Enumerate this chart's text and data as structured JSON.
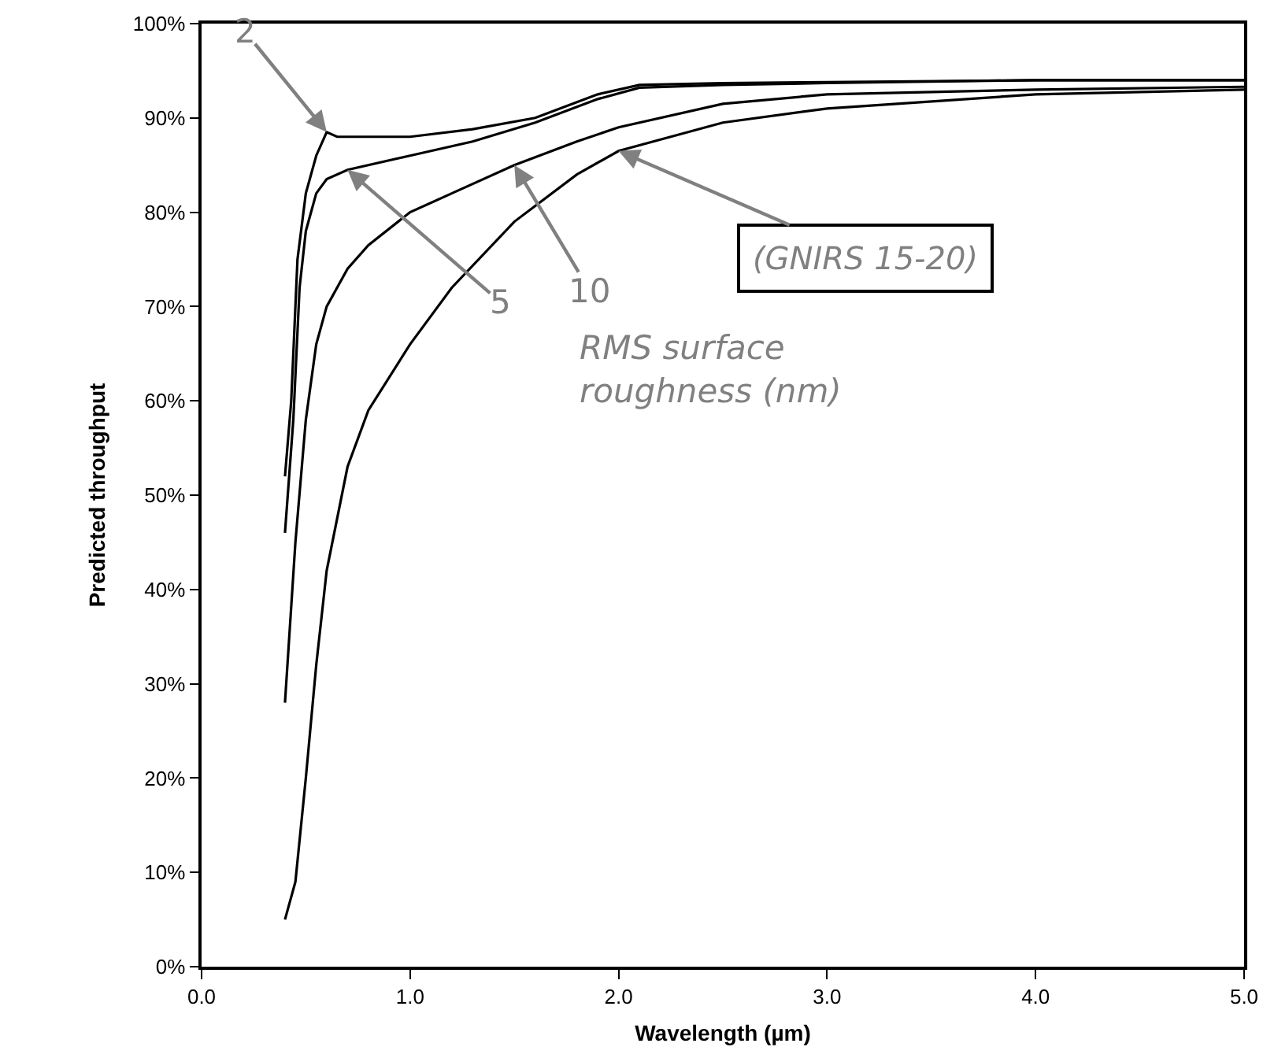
{
  "chart_data": {
    "type": "line",
    "xlabel": "Wavelength (µm)",
    "ylabel": "Predicted throughput",
    "xlim": [
      0,
      5
    ],
    "xticks": [
      {
        "value": 0,
        "label": "0.0"
      },
      {
        "value": 1,
        "label": "1.0"
      },
      {
        "value": 2,
        "label": "2.0"
      },
      {
        "value": 3,
        "label": "3.0"
      },
      {
        "value": 4,
        "label": "4.0"
      },
      {
        "value": 5,
        "label": "5.0"
      }
    ],
    "ylim": [
      0,
      100
    ],
    "yticks": [
      {
        "value": 0,
        "label": "0%"
      },
      {
        "value": 10,
        "label": "10%"
      },
      {
        "value": 20,
        "label": "20%"
      },
      {
        "value": 30,
        "label": "30%"
      },
      {
        "value": 40,
        "label": "40%"
      },
      {
        "value": 50,
        "label": "50%"
      },
      {
        "value": 60,
        "label": "60%"
      },
      {
        "value": 70,
        "label": "70%"
      },
      {
        "value": 80,
        "label": "80%"
      },
      {
        "value": 90,
        "label": "90%"
      },
      {
        "value": 100,
        "label": "100%"
      }
    ],
    "grid": false,
    "marker": "none",
    "line_style": "solid",
    "series": [
      {
        "color": "#000000",
        "x": [
          0.4,
          0.43,
          0.46,
          0.5,
          0.55,
          0.6,
          0.65,
          0.7,
          1.0,
          1.3,
          1.6,
          1.9,
          2.1,
          2.5,
          3.0,
          4.0,
          5.0
        ],
        "values": [
          52,
          60,
          75,
          82,
          86,
          88.5,
          88,
          88,
          88,
          88.8,
          90,
          92.5,
          93.5,
          93.7,
          93.8,
          94,
          94
        ]
      },
      {
        "color": "#000000",
        "x": [
          0.4,
          0.44,
          0.47,
          0.5,
          0.55,
          0.6,
          0.7,
          1.0,
          1.3,
          1.6,
          1.9,
          2.1,
          2.5,
          3.0,
          4.0,
          5.0
        ],
        "values": [
          46,
          58,
          72,
          78,
          82,
          83.5,
          84.5,
          86,
          87.5,
          89.5,
          92,
          93.2,
          93.5,
          93.7,
          94,
          94
        ]
      },
      {
        "color": "#000000",
        "x": [
          0.4,
          0.45,
          0.5,
          0.55,
          0.6,
          0.7,
          0.8,
          1.0,
          1.2,
          1.5,
          1.8,
          2.0,
          2.5,
          3.0,
          4.0,
          5.0
        ],
        "values": [
          28,
          45,
          58,
          66,
          70,
          74,
          76.5,
          80,
          82,
          85,
          87.5,
          89,
          91.5,
          92.5,
          93,
          93.3
        ]
      },
      {
        "color": "#000000",
        "x": [
          0.4,
          0.45,
          0.5,
          0.55,
          0.6,
          0.7,
          0.8,
          1.0,
          1.2,
          1.5,
          1.8,
          2.0,
          2.5,
          3.0,
          4.0,
          5.0
        ],
        "values": [
          5,
          9,
          20,
          32,
          42,
          53,
          59,
          66,
          72,
          79,
          84,
          86.5,
          89.5,
          91,
          92.5,
          93
        ]
      }
    ],
    "annotations": [
      {
        "text": "2",
        "x": 0.6,
        "y": 88.5
      },
      {
        "text": "5",
        "x": 0.7,
        "y": 84.5
      },
      {
        "text": "10",
        "x": 1.5,
        "y": 85
      },
      {
        "text": "(GNIRS 15-20)",
        "x": 2.0,
        "y": 86.5
      },
      "RMS surface roughness (nm)"
    ]
  }
}
